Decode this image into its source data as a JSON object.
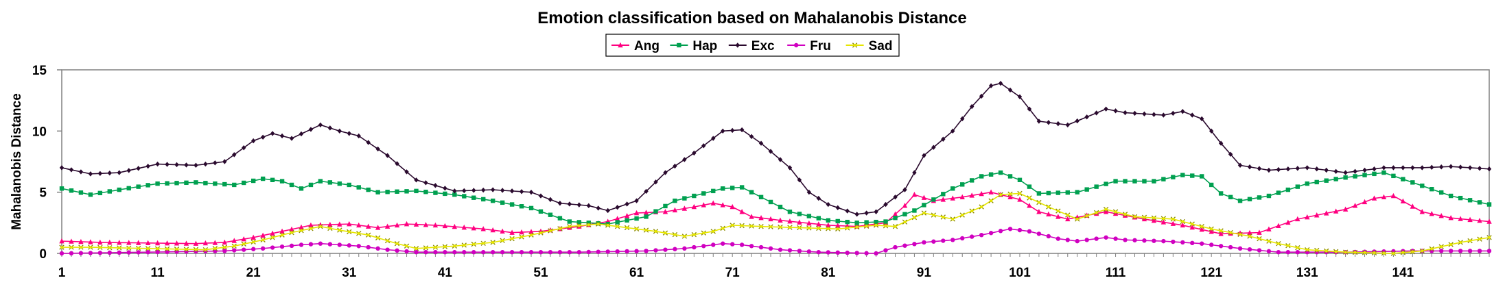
{
  "chart_data": {
    "type": "line",
    "title": "Emotion classification based on Mahalanobis Distance",
    "xlabel": "",
    "ylabel": "Mahalanobis  Distance",
    "ylim": [
      0,
      15
    ],
    "xlim": [
      1,
      150
    ],
    "x_ticks": [
      1,
      11,
      21,
      31,
      41,
      51,
      61,
      71,
      81,
      91,
      101,
      111,
      121,
      131,
      141
    ],
    "y_ticks": [
      0,
      5,
      10,
      15
    ],
    "grid": false,
    "legend_position": "top-center",
    "series": [
      {
        "name": "Ang",
        "color": "#ff0080",
        "marker": "triangle",
        "keypoints": [
          [
            1,
            1.0
          ],
          [
            5,
            0.9
          ],
          [
            15,
            0.8
          ],
          [
            18,
            0.9
          ],
          [
            21,
            1.3
          ],
          [
            24,
            1.8
          ],
          [
            27,
            2.3
          ],
          [
            31,
            2.4
          ],
          [
            34,
            2.1
          ],
          [
            37,
            2.4
          ],
          [
            40,
            2.3
          ],
          [
            45,
            2.0
          ],
          [
            48,
            1.7
          ],
          [
            51,
            1.8
          ],
          [
            55,
            2.2
          ],
          [
            58,
            2.6
          ],
          [
            61,
            3.3
          ],
          [
            64,
            3.4
          ],
          [
            67,
            3.8
          ],
          [
            69,
            4.1
          ],
          [
            71,
            3.8
          ],
          [
            73,
            3.0
          ],
          [
            76,
            2.7
          ],
          [
            81,
            2.3
          ],
          [
            84,
            2.2
          ],
          [
            87,
            2.5
          ],
          [
            89,
            3.9
          ],
          [
            90,
            4.8
          ],
          [
            92,
            4.3
          ],
          [
            95,
            4.6
          ],
          [
            98,
            5.0
          ],
          [
            101,
            4.4
          ],
          [
            103,
            3.4
          ],
          [
            106,
            2.8
          ],
          [
            110,
            3.4
          ],
          [
            114,
            2.8
          ],
          [
            118,
            2.3
          ],
          [
            122,
            1.6
          ],
          [
            126,
            1.7
          ],
          [
            130,
            2.8
          ],
          [
            135,
            3.6
          ],
          [
            138,
            4.5
          ],
          [
            140,
            4.7
          ],
          [
            143,
            3.4
          ],
          [
            146,
            2.9
          ],
          [
            150,
            2.6
          ]
        ]
      },
      {
        "name": "Hap",
        "color": "#00a050",
        "marker": "square",
        "keypoints": [
          [
            1,
            5.3
          ],
          [
            4,
            4.8
          ],
          [
            7,
            5.2
          ],
          [
            11,
            5.7
          ],
          [
            15,
            5.8
          ],
          [
            19,
            5.6
          ],
          [
            22,
            6.1
          ],
          [
            24,
            5.9
          ],
          [
            26,
            5.3
          ],
          [
            28,
            5.9
          ],
          [
            31,
            5.6
          ],
          [
            34,
            5.0
          ],
          [
            38,
            5.1
          ],
          [
            42,
            4.8
          ],
          [
            46,
            4.3
          ],
          [
            50,
            3.7
          ],
          [
            54,
            2.6
          ],
          [
            58,
            2.4
          ],
          [
            62,
            3.0
          ],
          [
            65,
            4.3
          ],
          [
            70,
            5.3
          ],
          [
            72,
            5.4
          ],
          [
            74,
            4.6
          ],
          [
            77,
            3.4
          ],
          [
            81,
            2.7
          ],
          [
            84,
            2.5
          ],
          [
            87,
            2.6
          ],
          [
            90,
            3.5
          ],
          [
            94,
            5.3
          ],
          [
            97,
            6.3
          ],
          [
            99,
            6.6
          ],
          [
            101,
            6.0
          ],
          [
            103,
            4.9
          ],
          [
            107,
            5.0
          ],
          [
            111,
            5.9
          ],
          [
            115,
            5.9
          ],
          [
            118,
            6.4
          ],
          [
            120,
            6.3
          ],
          [
            122,
            4.9
          ],
          [
            124,
            4.3
          ],
          [
            127,
            4.7
          ],
          [
            131,
            5.7
          ],
          [
            135,
            6.2
          ],
          [
            139,
            6.6
          ],
          [
            142,
            5.8
          ],
          [
            146,
            4.7
          ],
          [
            150,
            4.0
          ]
        ]
      },
      {
        "name": "Exc",
        "color": "#2a0a2e",
        "marker": "diamond",
        "keypoints": [
          [
            1,
            7.0
          ],
          [
            4,
            6.5
          ],
          [
            7,
            6.6
          ],
          [
            11,
            7.3
          ],
          [
            15,
            7.2
          ],
          [
            18,
            7.5
          ],
          [
            21,
            9.2
          ],
          [
            23,
            9.8
          ],
          [
            25,
            9.4
          ],
          [
            28,
            10.5
          ],
          [
            30,
            10.0
          ],
          [
            32,
            9.6
          ],
          [
            35,
            8.0
          ],
          [
            38,
            6.0
          ],
          [
            42,
            5.1
          ],
          [
            46,
            5.2
          ],
          [
            50,
            5.0
          ],
          [
            53,
            4.1
          ],
          [
            56,
            3.9
          ],
          [
            58,
            3.5
          ],
          [
            61,
            4.3
          ],
          [
            64,
            6.6
          ],
          [
            67,
            8.2
          ],
          [
            70,
            10.0
          ],
          [
            72,
            10.1
          ],
          [
            74,
            9.0
          ],
          [
            77,
            7.0
          ],
          [
            79,
            5.0
          ],
          [
            81,
            4.0
          ],
          [
            84,
            3.2
          ],
          [
            86,
            3.4
          ],
          [
            89,
            5.2
          ],
          [
            91,
            8.0
          ],
          [
            94,
            10.0
          ],
          [
            96,
            12.0
          ],
          [
            98,
            13.7
          ],
          [
            99,
            13.9
          ],
          [
            101,
            12.8
          ],
          [
            103,
            10.8
          ],
          [
            106,
            10.5
          ],
          [
            110,
            11.8
          ],
          [
            112,
            11.5
          ],
          [
            116,
            11.3
          ],
          [
            118,
            11.6
          ],
          [
            120,
            11.0
          ],
          [
            122,
            9.0
          ],
          [
            124,
            7.2
          ],
          [
            127,
            6.8
          ],
          [
            131,
            7.0
          ],
          [
            135,
            6.6
          ],
          [
            139,
            7.0
          ],
          [
            143,
            7.0
          ],
          [
            146,
            7.1
          ],
          [
            150,
            6.9
          ]
        ]
      },
      {
        "name": "Fru",
        "color": "#d000c0",
        "marker": "circle",
        "keypoints": [
          [
            1,
            0.0
          ],
          [
            10,
            0.1
          ],
          [
            18,
            0.2
          ],
          [
            22,
            0.4
          ],
          [
            26,
            0.7
          ],
          [
            28,
            0.8
          ],
          [
            32,
            0.6
          ],
          [
            35,
            0.3
          ],
          [
            38,
            0.1
          ],
          [
            45,
            0.1
          ],
          [
            55,
            0.1
          ],
          [
            62,
            0.2
          ],
          [
            66,
            0.4
          ],
          [
            70,
            0.8
          ],
          [
            72,
            0.7
          ],
          [
            76,
            0.3
          ],
          [
            80,
            0.1
          ],
          [
            86,
            0.0
          ],
          [
            88,
            0.5
          ],
          [
            91,
            0.9
          ],
          [
            94,
            1.1
          ],
          [
            97,
            1.5
          ],
          [
            100,
            2.0
          ],
          [
            102,
            1.8
          ],
          [
            105,
            1.2
          ],
          [
            107,
            1.0
          ],
          [
            110,
            1.3
          ],
          [
            112,
            1.1
          ],
          [
            116,
            1.0
          ],
          [
            120,
            0.8
          ],
          [
            124,
            0.4
          ],
          [
            128,
            0.1
          ],
          [
            135,
            0.1
          ],
          [
            142,
            0.2
          ],
          [
            150,
            0.2
          ]
        ]
      },
      {
        "name": "Sad",
        "color": "#e6e600",
        "marker": "x",
        "keypoints": [
          [
            1,
            0.5
          ],
          [
            4,
            0.5
          ],
          [
            10,
            0.4
          ],
          [
            16,
            0.3
          ],
          [
            19,
            0.6
          ],
          [
            22,
            1.1
          ],
          [
            25,
            1.7
          ],
          [
            28,
            2.2
          ],
          [
            30,
            1.9
          ],
          [
            33,
            1.5
          ],
          [
            36,
            0.8
          ],
          [
            38,
            0.4
          ],
          [
            42,
            0.6
          ],
          [
            46,
            0.9
          ],
          [
            50,
            1.5
          ],
          [
            54,
            2.2
          ],
          [
            57,
            2.4
          ],
          [
            60,
            2.1
          ],
          [
            63,
            1.8
          ],
          [
            66,
            1.4
          ],
          [
            69,
            1.8
          ],
          [
            71,
            2.3
          ],
          [
            74,
            2.2
          ],
          [
            78,
            2.1
          ],
          [
            82,
            2.0
          ],
          [
            86,
            2.3
          ],
          [
            88,
            2.2
          ],
          [
            91,
            3.3
          ],
          [
            94,
            2.8
          ],
          [
            97,
            3.8
          ],
          [
            99,
            4.8
          ],
          [
            101,
            4.9
          ],
          [
            104,
            3.8
          ],
          [
            107,
            2.8
          ],
          [
            110,
            3.6
          ],
          [
            113,
            3.0
          ],
          [
            117,
            2.8
          ],
          [
            121,
            2.0
          ],
          [
            125,
            1.4
          ],
          [
            128,
            0.8
          ],
          [
            131,
            0.3
          ],
          [
            135,
            0.1
          ],
          [
            140,
            0.0
          ],
          [
            143,
            0.2
          ],
          [
            147,
            0.9
          ],
          [
            150,
            1.3
          ]
        ]
      }
    ]
  }
}
